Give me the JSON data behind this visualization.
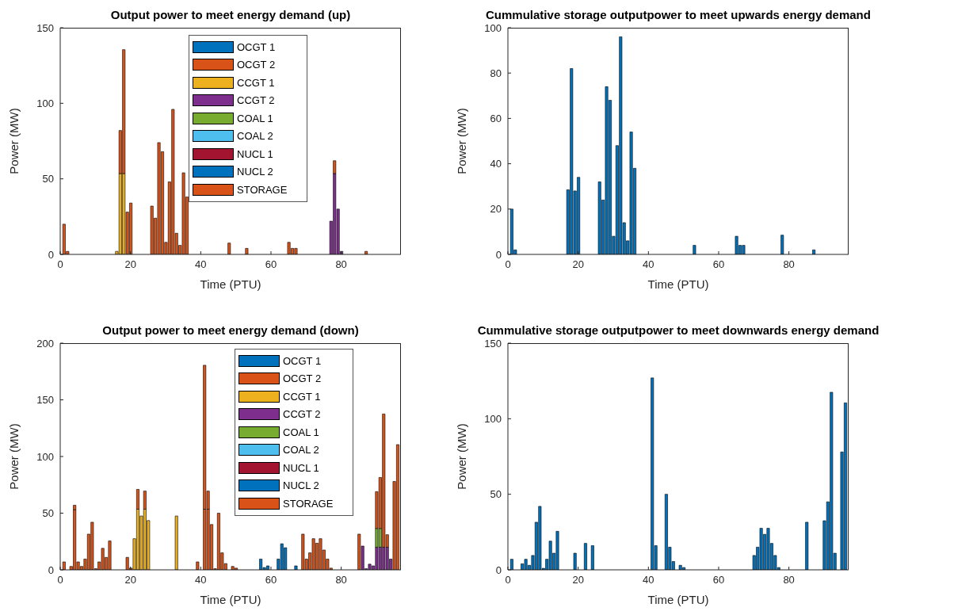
{
  "chart_data": [
    {
      "type": "bar",
      "title": "Output power to meet energy demand (up)",
      "xlabel": "Time (PTU)",
      "ylabel": "Power (MW)",
      "xlim": [
        0,
        97
      ],
      "xticks": [
        0,
        20,
        40,
        60,
        80
      ],
      "ylim": [
        0,
        150
      ],
      "yticks": [
        0,
        50,
        100,
        150
      ],
      "stacked": true,
      "legend": "top",
      "x": [
        1,
        2,
        16,
        17,
        18,
        19,
        20,
        26,
        27,
        28,
        29,
        30,
        31,
        32,
        33,
        34,
        35,
        36,
        48,
        53,
        65,
        66,
        67,
        77,
        78,
        79,
        80,
        87
      ],
      "series": [
        {
          "name": "OCGT 1",
          "color": "#0072bd",
          "values": [
            null,
            null,
            null,
            null,
            null,
            null,
            null,
            null,
            null,
            null,
            null,
            null,
            null,
            null,
            null,
            null,
            null,
            null,
            null,
            null,
            null,
            null,
            null,
            null,
            null,
            null,
            null,
            null
          ]
        },
        {
          "name": "OCGT 2",
          "color": "#d95319",
          "values": [
            null,
            null,
            null,
            null,
            null,
            null,
            null,
            null,
            null,
            null,
            null,
            null,
            null,
            null,
            null,
            null,
            null,
            null,
            7.5,
            null,
            null,
            null,
            null,
            null,
            null,
            null,
            null,
            null
          ]
        },
        {
          "name": "CCGT 1",
          "color": "#edb120",
          "values": [
            null,
            null,
            2,
            53.5,
            53.5,
            null,
            null,
            null,
            null,
            null,
            null,
            null,
            null,
            null,
            null,
            null,
            null,
            null,
            null,
            null,
            null,
            null,
            null,
            null,
            null,
            null,
            null,
            null
          ]
        },
        {
          "name": "CCGT 2",
          "color": "#7e2f8e",
          "values": [
            null,
            null,
            null,
            null,
            null,
            null,
            null,
            null,
            null,
            null,
            null,
            null,
            null,
            null,
            null,
            null,
            null,
            null,
            null,
            null,
            null,
            null,
            null,
            22,
            53.5,
            30,
            2,
            null
          ]
        },
        {
          "name": "COAL 1",
          "color": "#77ac30",
          "values": [
            null,
            null,
            null,
            null,
            null,
            null,
            null,
            null,
            null,
            null,
            null,
            null,
            null,
            null,
            null,
            null,
            null,
            null,
            null,
            null,
            null,
            null,
            null,
            null,
            null,
            null,
            null,
            null
          ]
        },
        {
          "name": "COAL 2",
          "color": "#4dbeee",
          "values": [
            null,
            null,
            null,
            null,
            null,
            null,
            null,
            null,
            null,
            null,
            null,
            null,
            null,
            null,
            null,
            null,
            null,
            null,
            null,
            null,
            null,
            null,
            null,
            null,
            null,
            null,
            null,
            null
          ]
        },
        {
          "name": "NUCL 1",
          "color": "#a2142f",
          "values": [
            null,
            null,
            null,
            null,
            null,
            null,
            null,
            null,
            null,
            null,
            null,
            null,
            null,
            null,
            null,
            null,
            null,
            null,
            null,
            null,
            null,
            null,
            null,
            null,
            null,
            null,
            null,
            null
          ]
        },
        {
          "name": "NUCL 2",
          "color": "#0072bd",
          "values": [
            null,
            null,
            null,
            null,
            null,
            null,
            null,
            null,
            null,
            null,
            null,
            null,
            null,
            null,
            null,
            null,
            null,
            null,
            null,
            null,
            null,
            null,
            null,
            null,
            null,
            null,
            null,
            null
          ]
        },
        {
          "name": "STORAGE",
          "color": "#d95319",
          "values": [
            20,
            2,
            null,
            28.5,
            82,
            28,
            34,
            32,
            24,
            74,
            68,
            8,
            48,
            96,
            14,
            6,
            54,
            38,
            null,
            4,
            8,
            4,
            4,
            null,
            8.5,
            null,
            null,
            2
          ]
        }
      ]
    },
    {
      "type": "bar",
      "title": "Cummulative storage outputpower to meet upwards energy demand",
      "xlabel": "Time (PTU)",
      "ylabel": "Power (MW)",
      "xlim": [
        0,
        97
      ],
      "xticks": [
        0,
        20,
        40,
        60,
        80
      ],
      "ylim": [
        0,
        100
      ],
      "yticks": [
        0,
        20,
        40,
        60,
        80,
        100
      ],
      "x": [
        1,
        2,
        17,
        18,
        19,
        20,
        26,
        27,
        28,
        29,
        30,
        31,
        32,
        33,
        34,
        35,
        36,
        53,
        65,
        66,
        67,
        78,
        87
      ],
      "series": [
        {
          "color": "#0072bd",
          "values": [
            20,
            2,
            28.5,
            82,
            28,
            34,
            32,
            24,
            74,
            68,
            8,
            48,
            96,
            14,
            6,
            54,
            38,
            4,
            8,
            4,
            4,
            8.5,
            2
          ]
        }
      ]
    },
    {
      "type": "bar",
      "title": "Output power to meet energy demand (down)",
      "xlabel": "Time (PTU)",
      "ylabel": "Power (MW)",
      "xlim": [
        0,
        97
      ],
      "xticks": [
        0,
        20,
        40,
        60,
        80
      ],
      "ylim": [
        0,
        200
      ],
      "yticks": [
        0,
        50,
        100,
        150,
        200
      ],
      "stacked": true,
      "legend": "top right",
      "x": [
        1,
        3,
        4,
        5,
        6,
        7,
        8,
        9,
        10,
        11,
        12,
        13,
        14,
        19,
        20,
        21,
        22,
        23,
        24,
        25,
        33,
        39,
        41,
        42,
        43,
        44,
        45,
        46,
        47,
        49,
        50,
        57,
        58,
        59,
        62,
        63,
        64,
        67,
        69,
        70,
        71,
        72,
        73,
        74,
        75,
        76,
        77,
        85,
        86,
        87,
        88,
        89,
        90,
        91,
        92,
        93,
        94,
        95,
        96
      ],
      "series": [
        {
          "name": "OCGT 1",
          "color": "#0072bd",
          "values": [
            null,
            null,
            null,
            null,
            null,
            null,
            null,
            null,
            null,
            null,
            null,
            null,
            null,
            null,
            null,
            null,
            null,
            null,
            null,
            null,
            null,
            null,
            null,
            null,
            null,
            null,
            null,
            null,
            null,
            null,
            null,
            9.5,
            2,
            3.5,
            9.5,
            23,
            19.5,
            3.5,
            null,
            null,
            null,
            null,
            null,
            null,
            null,
            null,
            null,
            null,
            null,
            null,
            null,
            null,
            null,
            null,
            null,
            null,
            null,
            null,
            null
          ]
        },
        {
          "name": "OCGT 2",
          "color": "#d95319",
          "values": [
            null,
            3,
            53,
            null,
            null,
            null,
            null,
            null,
            null,
            null,
            null,
            null,
            null,
            null,
            1.5,
            null,
            null,
            null,
            null,
            null,
            null,
            7,
            53.5,
            53.5,
            40,
            1,
            null,
            null,
            null,
            null,
            null,
            null,
            null,
            null,
            null,
            null,
            null,
            null,
            31.5,
            null,
            null,
            null,
            null,
            null,
            null,
            null,
            null,
            null,
            null,
            null,
            null,
            null,
            null,
            null,
            null,
            null,
            null,
            null,
            null
          ]
        },
        {
          "name": "CCGT 1",
          "color": "#edb120",
          "values": [
            null,
            null,
            null,
            null,
            null,
            null,
            null,
            null,
            null,
            null,
            null,
            null,
            null,
            null,
            null,
            27.5,
            53.5,
            47.5,
            53.5,
            43.5,
            47.5,
            null,
            null,
            null,
            null,
            null,
            null,
            null,
            null,
            null,
            null,
            null,
            null,
            null,
            null,
            null,
            null,
            null,
            null,
            null,
            null,
            null,
            null,
            null,
            null,
            null,
            null,
            null,
            null,
            null,
            null,
            null,
            null,
            null,
            null,
            null,
            null,
            null,
            null
          ]
        },
        {
          "name": "CCGT 2",
          "color": "#7e2f8e",
          "values": [
            null,
            null,
            null,
            null,
            null,
            null,
            null,
            null,
            null,
            null,
            null,
            null,
            null,
            null,
            null,
            null,
            null,
            null,
            null,
            null,
            null,
            null,
            null,
            null,
            null,
            null,
            null,
            null,
            null,
            null,
            null,
            null,
            null,
            null,
            null,
            null,
            null,
            null,
            null,
            null,
            null,
            null,
            null,
            null,
            null,
            null,
            null,
            null,
            21,
            1,
            5,
            3.5,
            20,
            20,
            20,
            20,
            9.5,
            null,
            null
          ]
        },
        {
          "name": "COAL 1",
          "color": "#77ac30",
          "values": [
            null,
            null,
            null,
            null,
            null,
            null,
            null,
            null,
            null,
            null,
            null,
            null,
            null,
            null,
            null,
            null,
            null,
            null,
            null,
            null,
            null,
            null,
            null,
            null,
            null,
            null,
            null,
            null,
            null,
            null,
            null,
            null,
            null,
            null,
            null,
            null,
            null,
            null,
            null,
            null,
            null,
            null,
            null,
            null,
            null,
            null,
            null,
            null,
            null,
            null,
            null,
            null,
            16.5,
            16.5,
            null,
            null,
            null,
            null,
            null
          ]
        },
        {
          "name": "COAL 2",
          "color": "#4dbeee",
          "values": [
            null,
            null,
            null,
            null,
            null,
            null,
            null,
            null,
            null,
            null,
            null,
            null,
            null,
            null,
            null,
            null,
            null,
            null,
            null,
            null,
            null,
            null,
            null,
            null,
            null,
            null,
            null,
            null,
            null,
            null,
            null,
            null,
            null,
            null,
            null,
            null,
            null,
            null,
            null,
            null,
            null,
            null,
            null,
            null,
            null,
            null,
            null,
            null,
            null,
            null,
            null,
            null,
            null,
            null,
            null,
            null,
            null,
            null,
            null
          ]
        },
        {
          "name": "NUCL 1",
          "color": "#a2142f",
          "values": [
            null,
            null,
            null,
            null,
            null,
            null,
            null,
            null,
            null,
            null,
            null,
            null,
            null,
            null,
            null,
            null,
            null,
            null,
            null,
            null,
            null,
            null,
            null,
            null,
            null,
            null,
            null,
            null,
            null,
            null,
            null,
            null,
            null,
            null,
            null,
            null,
            null,
            null,
            null,
            null,
            null,
            null,
            null,
            null,
            null,
            null,
            null,
            null,
            null,
            null,
            null,
            null,
            null,
            null,
            null,
            null,
            null,
            null,
            null
          ]
        },
        {
          "name": "NUCL 2",
          "color": "#0072bd",
          "values": [
            null,
            null,
            null,
            null,
            null,
            null,
            null,
            null,
            null,
            null,
            null,
            null,
            null,
            null,
            null,
            null,
            null,
            null,
            null,
            null,
            null,
            null,
            null,
            null,
            null,
            null,
            null,
            null,
            null,
            null,
            null,
            null,
            null,
            null,
            null,
            null,
            null,
            null,
            null,
            null,
            null,
            null,
            null,
            null,
            null,
            null,
            null,
            null,
            null,
            null,
            null,
            null,
            null,
            null,
            null,
            null,
            null,
            null,
            null
          ]
        },
        {
          "name": "STORAGE",
          "color": "#d95319",
          "values": [
            7,
            null,
            4,
            7,
            3,
            9.5,
            31.5,
            42,
            1,
            7,
            19,
            11,
            25.5,
            11,
            null,
            null,
            17.5,
            null,
            16,
            null,
            null,
            null,
            127,
            16,
            null,
            null,
            50,
            15,
            5.5,
            3,
            1.5,
            null,
            null,
            null,
            null,
            null,
            null,
            null,
            null,
            9.5,
            15,
            27.5,
            23.5,
            27.5,
            17.5,
            9.5,
            1.5,
            31.5,
            null,
            null,
            null,
            null,
            32.5,
            45,
            117.5,
            11,
            null,
            78,
            110.5
          ]
        }
      ]
    },
    {
      "type": "bar",
      "title": "Cummulative storage outputpower to meet downwards energy demand",
      "xlabel": "Time (PTU)",
      "ylabel": "Power (MW)",
      "xlim": [
        0,
        97
      ],
      "xticks": [
        0,
        20,
        40,
        60,
        80
      ],
      "ylim": [
        0,
        150
      ],
      "yticks": [
        0,
        50,
        100,
        150
      ],
      "x": [
        1,
        4,
        5,
        6,
        7,
        8,
        9,
        10,
        11,
        12,
        13,
        14,
        19,
        22,
        24,
        41,
        42,
        45,
        46,
        47,
        49,
        50,
        70,
        71,
        72,
        73,
        74,
        75,
        76,
        77,
        85,
        90,
        91,
        92,
        93,
        95,
        96
      ],
      "series": [
        {
          "color": "#0072bd",
          "values": [
            7,
            4,
            7,
            3,
            9.5,
            31.5,
            42,
            1,
            7,
            19,
            11,
            25.5,
            11,
            17.5,
            16,
            127,
            16,
            50,
            15,
            5.5,
            3,
            1.5,
            9.5,
            15,
            27.5,
            23.5,
            27.5,
            17.5,
            9.5,
            1.5,
            31.5,
            32.5,
            45,
            117.5,
            11,
            78,
            110.5
          ]
        }
      ]
    }
  ]
}
